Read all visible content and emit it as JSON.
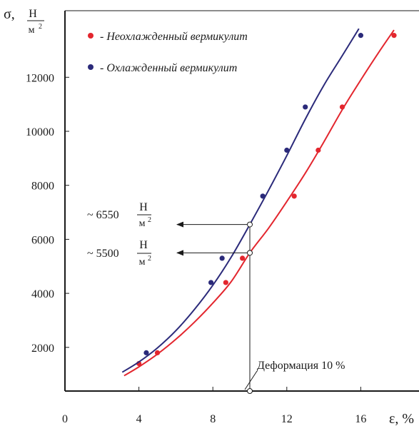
{
  "chart_data": {
    "type": "scatter",
    "y_axis": {
      "symbol": "σ,",
      "unit_num": "Н",
      "unit_den": "м",
      "unit_exp": "2",
      "range": [
        0,
        14000
      ],
      "ticks": [
        2000,
        4000,
        6000,
        8000,
        10000,
        12000
      ]
    },
    "x_axis": {
      "label": "ε, %",
      "range": [
        0,
        18.5
      ],
      "ticks": [
        0,
        4,
        8,
        12,
        16
      ]
    },
    "legend_placement": "top-left",
    "series": [
      {
        "name": "- Неохлажденный вермикулит",
        "color": "#e3262e",
        "line_color": "#e3262e",
        "points": [
          [
            4,
            1400
          ],
          [
            5,
            1800
          ],
          [
            8.7,
            4400
          ],
          [
            9.6,
            5300
          ],
          [
            12.4,
            7600
          ],
          [
            13.7,
            9300
          ],
          [
            15,
            10900
          ],
          [
            17.8,
            13550
          ]
        ],
        "fit": [
          [
            3.2,
            950
          ],
          [
            4,
            1280
          ],
          [
            5,
            1750
          ],
          [
            6,
            2300
          ],
          [
            7,
            2930
          ],
          [
            8,
            3640
          ],
          [
            9,
            4440
          ],
          [
            10,
            5500
          ],
          [
            11,
            6400
          ],
          [
            12,
            7400
          ],
          [
            13,
            8450
          ],
          [
            14,
            9600
          ],
          [
            15,
            10800
          ],
          [
            16,
            11900
          ],
          [
            17,
            12950
          ],
          [
            17.8,
            13750
          ]
        ]
      },
      {
        "name": "- Охлажденный вермикулит",
        "color": "#2b2a7a",
        "line_color": "#2b2a7a",
        "points": [
          [
            4.4,
            1800
          ],
          [
            7.9,
            4400
          ],
          [
            8.5,
            5300
          ],
          [
            10.7,
            7600
          ],
          [
            12,
            9300
          ],
          [
            13,
            10900
          ],
          [
            16,
            13550
          ]
        ],
        "fit": [
          [
            3.1,
            1080
          ],
          [
            4,
            1460
          ],
          [
            5,
            1980
          ],
          [
            6,
            2620
          ],
          [
            7,
            3400
          ],
          [
            8,
            4300
          ],
          [
            9,
            5350
          ],
          [
            10,
            6550
          ],
          [
            11,
            7800
          ],
          [
            12,
            9100
          ],
          [
            13,
            10450
          ],
          [
            14,
            11700
          ],
          [
            15,
            12800
          ],
          [
            15.9,
            13800
          ]
        ]
      }
    ],
    "annotations": [
      {
        "prefix": "~ 6550",
        "unit_num": "Н",
        "unit_den": "м",
        "unit_exp": "2",
        "value": 6550,
        "from_x": 10
      },
      {
        "prefix": "~ 5500",
        "unit_num": "Н",
        "unit_den": "м",
        "unit_exp": "2",
        "value": 5500,
        "from_x": 10
      },
      {
        "text": "Деформация 10 %",
        "x": 10
      }
    ],
    "guide_x": 10
  }
}
